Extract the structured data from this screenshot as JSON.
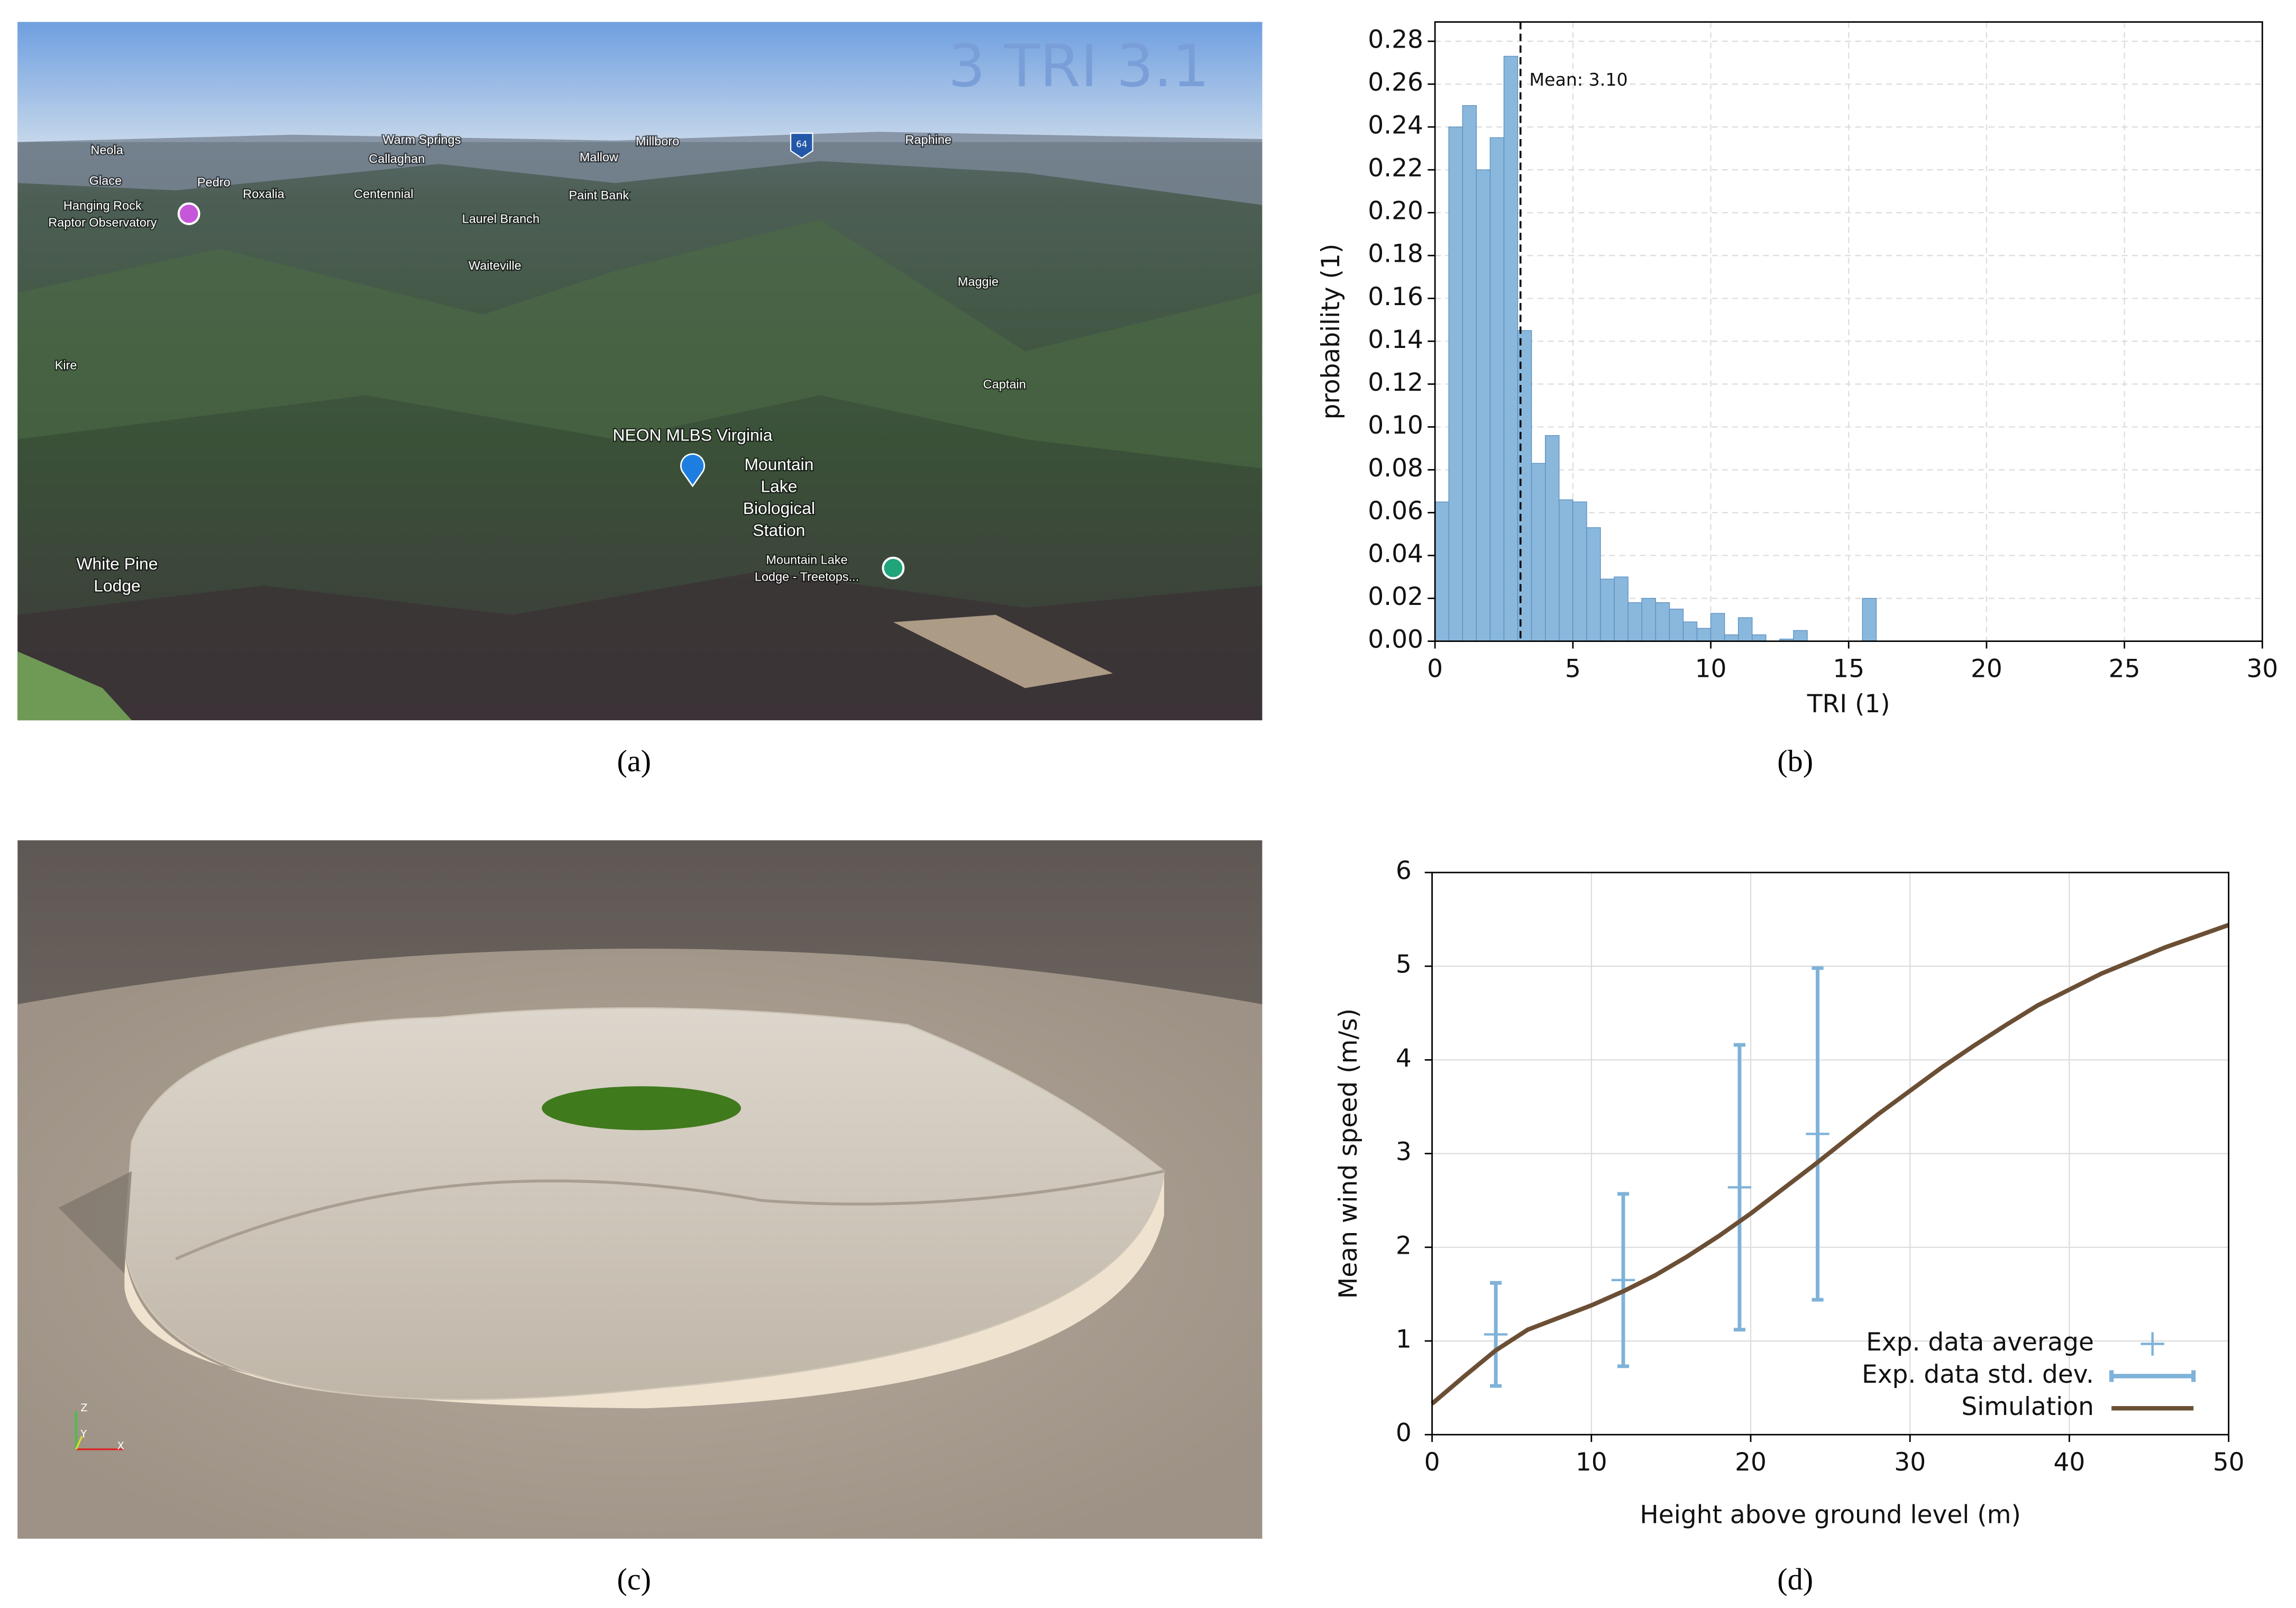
{
  "panels": [
    "(a)",
    "(b)",
    "(c)",
    "(d)"
  ],
  "photo": {
    "overlay": "3 TRI 3.1",
    "shield": "64",
    "places": [
      [
        "Neola"
      ],
      [
        "Warm Springs"
      ],
      [
        "Millboro"
      ],
      [
        "Raphine"
      ],
      [
        "Callaghan"
      ],
      [
        "Mallow"
      ],
      [
        "Glace"
      ],
      [
        "Pedro"
      ],
      [
        "Roxalia"
      ],
      [
        "Centennial"
      ],
      [
        "Paint Bank"
      ],
      [
        "Hanging Rock",
        "Raptor Observatory"
      ],
      [
        "Laurel Branch"
      ],
      [
        "Waiteville"
      ],
      [
        "Maggie"
      ],
      [
        "Kire"
      ],
      [
        "Captain"
      ],
      [
        "NEON MLBS Virginia"
      ],
      [
        "Mountain",
        "Lake",
        "Biological",
        "Station"
      ],
      [
        "White Pine",
        "Lodge"
      ],
      [
        "Mountain Lake",
        "Lodge - Treetops..."
      ]
    ]
  },
  "render": {
    "axes": [
      "Z",
      "Y",
      "X"
    ]
  },
  "chart_data": [
    {
      "type": "histogram",
      "xlabel": "TRI (1)",
      "ylabel": "probability (1)",
      "bins": [
        0,
        0.5,
        1,
        1.5,
        2,
        2.5,
        3,
        3.5,
        4,
        4.5,
        5,
        5.5,
        6,
        6.5,
        7,
        7.5,
        8,
        8.5,
        9,
        9.5,
        10,
        10.5,
        11,
        11.5,
        12,
        12.5,
        13,
        13.5,
        14,
        14.5,
        15,
        15.5,
        16
      ],
      "values": [
        0.065,
        0.24,
        0.25,
        0.22,
        0.235,
        0.273,
        0.145,
        0.083,
        0.096,
        0.066,
        0.065,
        0.053,
        0.029,
        0.03,
        0.018,
        0.02,
        0.018,
        0.015,
        0.009,
        0.006,
        0.013,
        0.003,
        0.011,
        0.003,
        0,
        0.001,
        0.005,
        0,
        0,
        0,
        0,
        0.02
      ],
      "color": "#8ab8dc",
      "edge_color": "#5b90c0",
      "xlim": [
        0,
        30
      ],
      "ylim": [
        0,
        0.289
      ],
      "xticks": [
        0,
        5,
        10,
        15,
        20,
        25,
        30
      ],
      "yticks": [
        {
          "value": 0,
          "label": "0.00"
        },
        {
          "value": 0.02,
          "label": "0.02"
        },
        {
          "value": 0.04,
          "label": "0.04"
        },
        {
          "value": 0.06,
          "label": "0.06"
        },
        {
          "value": 0.08,
          "label": "0.08"
        },
        {
          "value": 0.1,
          "label": "0.10"
        },
        {
          "value": 0.12,
          "label": "0.12"
        },
        {
          "value": 0.14,
          "label": "0.14"
        },
        {
          "value": 0.16,
          "label": "0.16"
        },
        {
          "value": 0.18,
          "label": "0.18"
        },
        {
          "value": 0.2,
          "label": "0.20"
        },
        {
          "value": 0.22,
          "label": "0.22"
        },
        {
          "value": 0.24,
          "label": "0.24"
        },
        {
          "value": 0.26,
          "label": "0.26"
        },
        {
          "value": 0.28,
          "label": "0.28"
        }
      ],
      "grid": true,
      "annotation": {
        "text": "Mean: 3.10",
        "x": 3.1
      }
    },
    {
      "type": "line",
      "xlabel": "Height above ground level (m)",
      "ylabel": "Mean wind speed (m/s)",
      "xlim": [
        0,
        50
      ],
      "ylim": [
        0,
        6
      ],
      "xticks": [
        0,
        10,
        20,
        30,
        40,
        50
      ],
      "yticks": [
        0,
        1,
        2,
        3,
        4,
        5,
        6
      ],
      "grid": true,
      "legend": "lower right",
      "series": [
        {
          "name": "Exp. data average",
          "color": "#7fb2d9",
          "x": [
            4,
            12,
            19.3,
            24.2
          ],
          "values": [
            1.07,
            1.65,
            2.64,
            3.21
          ]
        },
        {
          "name": "Exp. data std. dev.",
          "color": "#7fb2d9",
          "errors": [
            0.55,
            0.92,
            1.52,
            1.77
          ]
        },
        {
          "name": "Simulation",
          "color": "#6b4f35",
          "x": [
            0,
            2,
            4,
            6,
            8,
            10,
            12,
            14,
            16,
            18,
            20,
            22,
            24,
            26,
            28,
            30,
            32,
            34,
            36,
            38,
            40,
            42,
            44,
            46,
            48,
            50
          ],
          "values": [
            0.33,
            0.62,
            0.9,
            1.12,
            1.25,
            1.38,
            1.53,
            1.7,
            1.9,
            2.12,
            2.36,
            2.62,
            2.88,
            3.15,
            3.42,
            3.67,
            3.92,
            4.15,
            4.37,
            4.58,
            4.75,
            4.92,
            5.06,
            5.2,
            5.32,
            5.44
          ]
        }
      ]
    }
  ]
}
